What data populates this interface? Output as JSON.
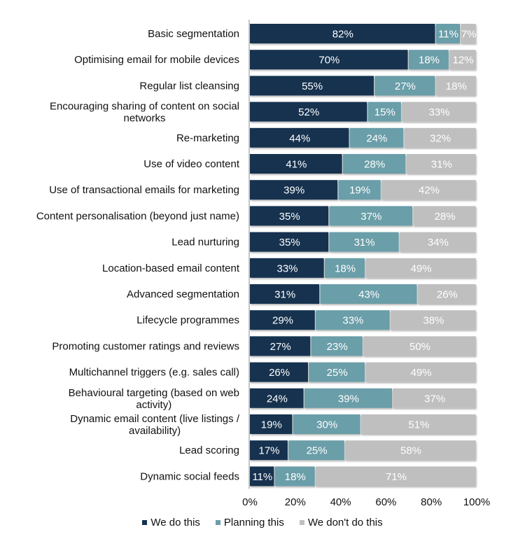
{
  "chart_data": {
    "type": "bar",
    "orientation": "horizontal",
    "stacked": true,
    "title": "",
    "xlabel": "",
    "ylabel": "",
    "xlim": [
      0,
      100
    ],
    "x_ticks": [
      "0%",
      "20%",
      "40%",
      "60%",
      "80%",
      "100%"
    ],
    "grid": false,
    "legend_position": "bottom",
    "categories": [
      [
        "Basic segmentation"
      ],
      [
        "Optimising email for mobile devices"
      ],
      [
        "Regular list cleansing"
      ],
      [
        "Encouraging sharing of content on social",
        "networks"
      ],
      [
        "Re-marketing"
      ],
      [
        "Use of video content"
      ],
      [
        "Use of transactional emails for marketing"
      ],
      [
        "Content personalisation (beyond just name)"
      ],
      [
        "Lead nurturing"
      ],
      [
        "Location-based email content"
      ],
      [
        "Advanced segmentation"
      ],
      [
        "Lifecycle programmes"
      ],
      [
        "Promoting customer ratings and reviews"
      ],
      [
        "Multichannel triggers (e.g. sales call)"
      ],
      [
        "Behavioural targeting (based on web",
        "activity)"
      ],
      [
        "Dynamic email content (live listings /",
        "availability)"
      ],
      [
        "Lead scoring"
      ],
      [
        "Dynamic social feeds"
      ]
    ],
    "series": [
      {
        "name": "We do this",
        "color": "#14324f",
        "values": [
          82,
          70,
          55,
          52,
          44,
          41,
          39,
          35,
          35,
          33,
          31,
          29,
          27,
          26,
          24,
          19,
          17,
          11
        ]
      },
      {
        "name": "Planning this",
        "color": "#6a9ea9",
        "values": [
          11,
          18,
          27,
          15,
          24,
          28,
          19,
          37,
          31,
          18,
          43,
          33,
          23,
          25,
          39,
          30,
          25,
          18
        ]
      },
      {
        "name": "We don't do this",
        "color": "#bfbfbf",
        "values": [
          7,
          12,
          18,
          33,
          32,
          31,
          42,
          28,
          34,
          49,
          26,
          38,
          50,
          49,
          37,
          51,
          58,
          71
        ]
      }
    ],
    "value_format": "{v}%"
  }
}
